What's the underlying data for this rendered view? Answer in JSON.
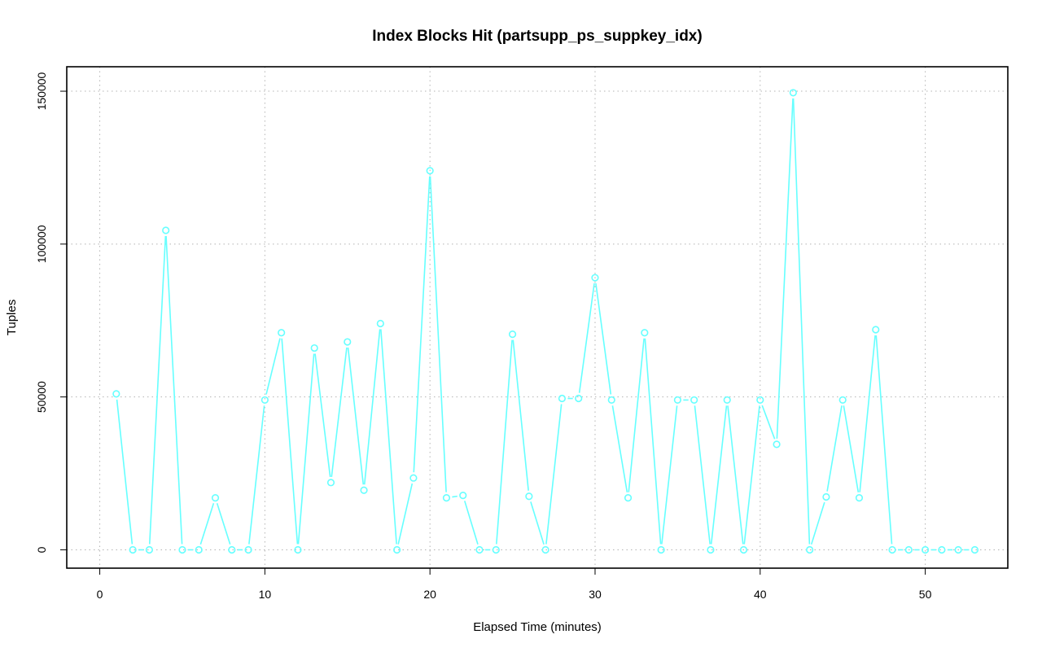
{
  "chart_data": {
    "type": "line",
    "title": "Index Blocks Hit (partsupp_ps_suppkey_idx)",
    "xlabel": "Elapsed Time (minutes)",
    "ylabel": "Tuples",
    "xlim": [
      -2,
      55
    ],
    "ylim": [
      -6000,
      158000
    ],
    "x_ticks": [
      0,
      10,
      20,
      30,
      40,
      50
    ],
    "y_ticks": [
      0,
      50000,
      100000,
      150000
    ],
    "x_tick_labels": [
      "0",
      "10",
      "20",
      "30",
      "40",
      "50"
    ],
    "y_tick_labels": [
      "0",
      "50000",
      "100000",
      "150000"
    ],
    "grid": true,
    "series": [
      {
        "color": "#66ffff",
        "x": [
          1,
          2,
          3,
          4,
          5,
          6,
          7,
          8,
          9,
          10,
          11,
          12,
          13,
          14,
          15,
          16,
          17,
          18,
          19,
          20,
          21,
          22,
          23,
          24,
          25,
          26,
          27,
          28,
          29,
          30,
          31,
          32,
          33,
          34,
          35,
          36,
          37,
          38,
          39,
          40,
          41,
          42,
          43,
          44,
          45,
          46,
          47,
          48,
          49,
          50,
          51,
          52,
          53
        ],
        "values": [
          51000,
          0,
          0,
          104500,
          0,
          0,
          17000,
          0,
          0,
          49000,
          71000,
          0,
          66000,
          22000,
          68000,
          19500,
          74000,
          0,
          23500,
          124000,
          17000,
          17800,
          0,
          0,
          70500,
          17500,
          0,
          49500,
          49500,
          89000,
          49000,
          17000,
          71000,
          0,
          49000,
          49000,
          0,
          49000,
          0,
          49000,
          34500,
          149500,
          0,
          17300,
          49000,
          17000,
          72000,
          0,
          0,
          0,
          0,
          0,
          0
        ]
      }
    ]
  }
}
